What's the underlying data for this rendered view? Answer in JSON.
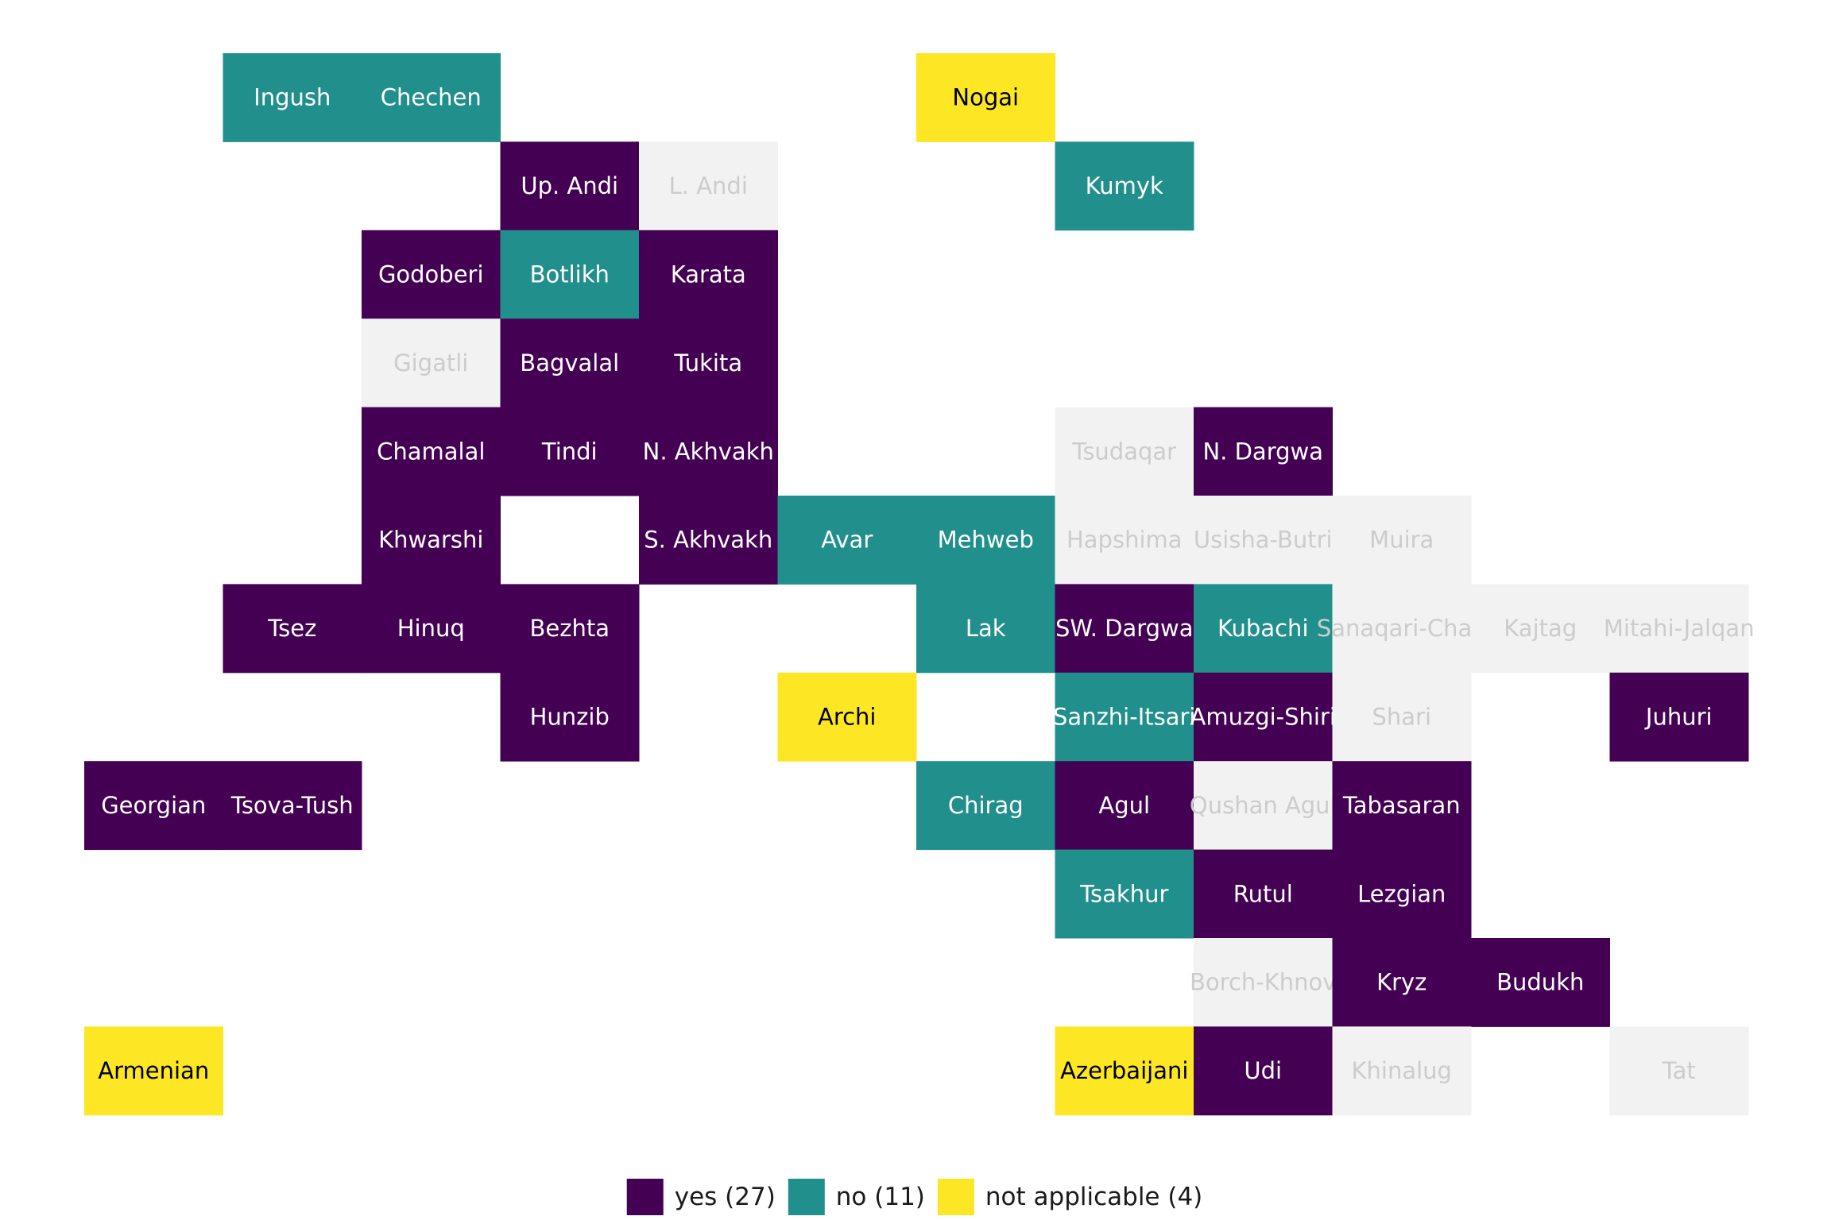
{
  "map": {
    "rows": [
      [
        null,
        {
          "label": "Ingush",
          "color": "#21908c"
        },
        {
          "label": "Chechen",
          "color": "#21908c"
        },
        null,
        null,
        null,
        {
          "label": "Nogai",
          "color": "#fde725"
        },
        null,
        null,
        null,
        null,
        null
      ],
      [
        null,
        null,
        null,
        {
          "label": "Up. Andi",
          "color": "#440154"
        },
        {
          "label": "L. Andi",
          "color": "#f2f2f2"
        },
        null,
        null,
        {
          "label": "Kumyk",
          "color": "#21908c"
        },
        null,
        null,
        null,
        null
      ],
      [
        null,
        null,
        {
          "label": "Godoberi",
          "color": "#440154"
        },
        {
          "label": "Botlikh",
          "color": "#21908c"
        },
        {
          "label": "Karata",
          "color": "#440154"
        },
        null,
        null,
        null,
        null,
        null,
        null,
        null
      ],
      [
        null,
        null,
        {
          "label": "Gigatli",
          "color": "#f2f2f2"
        },
        {
          "label": "Bagvalal",
          "color": "#440154"
        },
        {
          "label": "Tukita",
          "color": "#440154"
        },
        null,
        null,
        null,
        null,
        null,
        null,
        null
      ],
      [
        null,
        null,
        {
          "label": "Chamalal",
          "color": "#440154"
        },
        {
          "label": "Tindi",
          "color": "#440154"
        },
        {
          "label": "N. Akhvakh",
          "color": "#440154"
        },
        null,
        null,
        {
          "label": "Tsudaqar",
          "color": "#f2f2f2"
        },
        {
          "label": "N. Dargwa",
          "color": "#440154"
        },
        null,
        null,
        null
      ],
      [
        null,
        null,
        {
          "label": "Khwarshi",
          "color": "#440154"
        },
        null,
        {
          "label": "S. Akhvakh",
          "color": "#440154"
        },
        {
          "label": "Avar",
          "color": "#21908c"
        },
        {
          "label": "Mehweb",
          "color": "#21908c"
        },
        {
          "label": "Hapshima",
          "color": "#f2f2f2"
        },
        {
          "label": "Usisha-Butri",
          "color": "#f2f2f2"
        },
        {
          "label": "Muira",
          "color": "#f2f2f2"
        },
        null,
        null
      ],
      [
        null,
        {
          "label": "Tsez",
          "color": "#440154"
        },
        {
          "label": "Hinuq",
          "color": "#440154"
        },
        {
          "label": "Bezhta",
          "color": "#440154"
        },
        null,
        null,
        {
          "label": "Lak",
          "color": "#21908c"
        },
        {
          "label": "SW. Dargwa",
          "color": "#440154"
        },
        {
          "label": "Kubachi",
          "color": "#21908c"
        },
        {
          "label": "Sanaqari-Chah",
          "color": "#f2f2f2"
        },
        {
          "label": "Kajtag",
          "color": "#f2f2f2"
        },
        {
          "label": "Mitahi-Jalqan",
          "color": "#f2f2f2"
        }
      ],
      [
        null,
        null,
        null,
        {
          "label": "Hunzib",
          "color": "#440154"
        },
        null,
        {
          "label": "Archi",
          "color": "#fde725"
        },
        null,
        {
          "label": "Sanzhi-Itsari",
          "color": "#21908c"
        },
        {
          "label": "Amuzgi-Shiri",
          "color": "#440154"
        },
        {
          "label": "Shari",
          "color": "#f2f2f2"
        },
        null,
        {
          "label": "Juhuri",
          "color": "#440154"
        }
      ],
      [
        {
          "label": "Georgian",
          "color": "#440154"
        },
        {
          "label": "Tsova-Tush",
          "color": "#440154"
        },
        null,
        null,
        null,
        null,
        {
          "label": "Chirag",
          "color": "#21908c"
        },
        {
          "label": "Agul",
          "color": "#440154"
        },
        {
          "label": "Qushan Agul",
          "color": "#f2f2f2"
        },
        {
          "label": "Tabasaran",
          "color": "#440154"
        },
        null,
        null
      ],
      [
        null,
        null,
        null,
        null,
        null,
        null,
        null,
        {
          "label": "Tsakhur",
          "color": "#21908c"
        },
        {
          "label": "Rutul",
          "color": "#440154"
        },
        {
          "label": "Lezgian",
          "color": "#440154"
        },
        null,
        null
      ],
      [
        null,
        null,
        null,
        null,
        null,
        null,
        null,
        null,
        {
          "label": "Borch-Khnov",
          "color": "#f2f2f2"
        },
        {
          "label": "Kryz",
          "color": "#440154"
        },
        {
          "label": "Budukh",
          "color": "#440154"
        },
        null
      ],
      [
        {
          "label": "Armenian",
          "color": "#fde725"
        },
        null,
        null,
        null,
        null,
        null,
        null,
        {
          "label": "Azerbaijani",
          "color": "#fde725"
        },
        {
          "label": "Udi",
          "color": "#440154"
        },
        {
          "label": "Khinalug",
          "color": "#f2f2f2"
        },
        null,
        {
          "label": "Tat",
          "color": "#f2f2f2"
        }
      ]
    ],
    "legend": [
      {
        "label": "yes (27)",
        "color": "#440154"
      },
      {
        "label": "no (11)",
        "color": "#21908c"
      },
      {
        "label": "not applicable (4)",
        "color": "#fde725"
      }
    ]
  }
}
